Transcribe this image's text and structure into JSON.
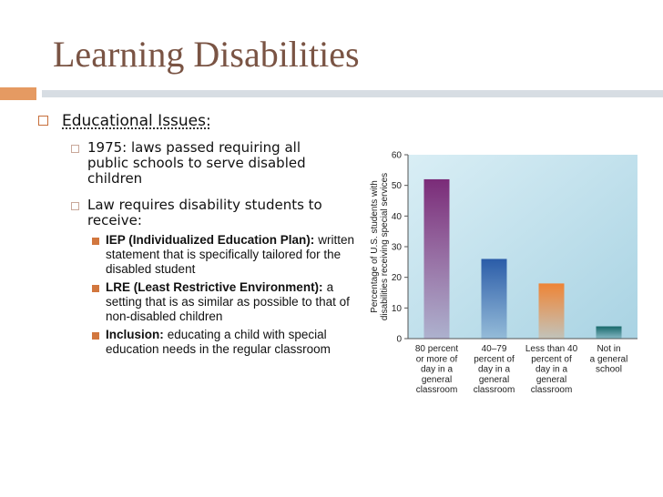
{
  "slide": {
    "title": "Learning Disabilities",
    "bullets": [
      {
        "text": "Educational Issues:",
        "children": [
          {
            "text": "1975: laws passed requiring all public schools to serve disabled children"
          },
          {
            "text": "Law requires disability students to receive:",
            "children": [
              {
                "bold": "IEP (Individualized Education Plan):",
                "text": "written statement that is specifically tailored for the disabled student"
              },
              {
                "bold": "LRE (Least Restrictive Environment):",
                "text": "a setting that is as similar as possible to that of non-disabled children"
              },
              {
                "bold": "Inclusion:",
                "text": "educating a child with special education needs in the regular classroom"
              }
            ]
          }
        ]
      }
    ]
  },
  "chart_data": {
    "type": "bar",
    "y_label": "Percentage of U.S. students with\ndisabilities receiving special services",
    "categories": [
      "80 percent\nor more of\nday in a\ngeneral\nclassroom",
      "40–79\npercent of\nday in a\ngeneral\nclassroom",
      "Less than 40\npercent of\nday in a\ngeneral\nclassroom",
      "Not in\na general\nschool"
    ],
    "values": [
      52,
      26,
      18,
      4
    ],
    "colors": [
      "#7a2b78",
      "#2a5ca8",
      "#ee8436",
      "#17686a"
    ],
    "ylim": [
      0,
      60
    ],
    "yticks": [
      0,
      10,
      20,
      30,
      40,
      50,
      60
    ]
  }
}
